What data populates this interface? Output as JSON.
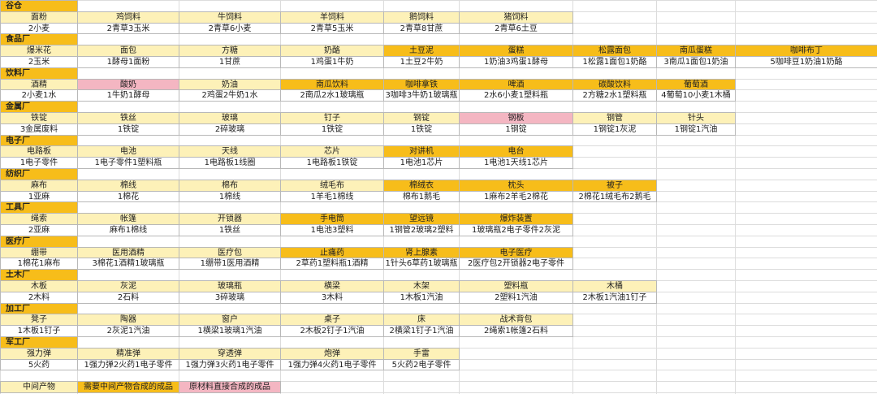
{
  "sections": [
    {
      "title": "谷仓",
      "items": [
        {
          "name": "面粉",
          "color": "#fdf1b8",
          "recipe": "2小麦"
        },
        {
          "name": "鸡饲料",
          "color": "#fdf1b8",
          "recipe": "2青草3玉米"
        },
        {
          "name": "牛饲料",
          "color": "#fdf1b8",
          "recipe": "2青草6小麦"
        },
        {
          "name": "羊饲料",
          "color": "#fdf1b8",
          "recipe": "2青草5玉米"
        },
        {
          "name": "鹅饲料",
          "color": "#fdf1b8",
          "recipe": "2青草8甘蔗"
        },
        {
          "name": "猪饲料",
          "color": "#fdf1b8",
          "recipe": "2青草6土豆"
        }
      ]
    },
    {
      "title": "食品厂",
      "items": [
        {
          "name": "爆米花",
          "color": "#fdf1b8",
          "recipe": "2玉米"
        },
        {
          "name": "面包",
          "color": "#fdf1b8",
          "recipe": "1酵母1面粉"
        },
        {
          "name": "方糖",
          "color": "#fdf1b8",
          "recipe": "1甘蔗"
        },
        {
          "name": "奶酪",
          "color": "#fdf1b8",
          "recipe": "1鸡蛋1牛奶"
        },
        {
          "name": "土豆泥",
          "color": "#f7bd1a",
          "recipe": "1土豆2牛奶"
        },
        {
          "name": "蛋糕",
          "color": "#f7bd1a",
          "recipe": "1奶油3鸡蛋1酵母"
        },
        {
          "name": "松露面包",
          "color": "#f7bd1a",
          "recipe": "1松露1面包1奶酪"
        },
        {
          "name": "南瓜蛋糕",
          "color": "#f7bd1a",
          "recipe": "3南瓜1面包1奶油"
        },
        {
          "name": "咖啡布丁",
          "color": "#f7bd1a",
          "recipe": "5咖啡豆1奶油1奶酪"
        }
      ]
    },
    {
      "title": "饮料厂",
      "items": [
        {
          "name": "酒精",
          "color": "#fdf1b8",
          "recipe": "2小麦1水"
        },
        {
          "name": "酸奶",
          "color": "#f4b6c2",
          "recipe": "1牛奶1酵母"
        },
        {
          "name": "奶油",
          "color": "#fdf1b8",
          "recipe": "2鸡蛋2牛奶1水"
        },
        {
          "name": "南瓜饮料",
          "color": "#f7bd1a",
          "recipe": "2南瓜2水1玻璃瓶"
        },
        {
          "name": "咖啡拿铁",
          "color": "#f7bd1a",
          "recipe": "3咖啡3牛奶1玻璃瓶"
        },
        {
          "name": "啤酒",
          "color": "#f7bd1a",
          "recipe": "2水6小麦1塑料瓶"
        },
        {
          "name": "碳酸饮料",
          "color": "#f7bd1a",
          "recipe": "2方糖2水1塑料瓶"
        },
        {
          "name": "葡萄酒",
          "color": "#f7bd1a",
          "recipe": "4葡萄10小麦1木桶"
        }
      ]
    },
    {
      "title": "金属厂",
      "items": [
        {
          "name": "铁锭",
          "color": "#fdf1b8",
          "recipe": "3金属废料"
        },
        {
          "name": "铁丝",
          "color": "#fdf1b8",
          "recipe": "1铁锭"
        },
        {
          "name": "玻璃",
          "color": "#fdf1b8",
          "recipe": "2碎玻璃"
        },
        {
          "name": "钉子",
          "color": "#fdf1b8",
          "recipe": "1铁锭"
        },
        {
          "name": "钢锭",
          "color": "#fdf1b8",
          "recipe": "1铁锭"
        },
        {
          "name": "钢板",
          "color": "#f4b6c2",
          "recipe": "1钢锭"
        },
        {
          "name": "钢管",
          "color": "#fdf1b8",
          "recipe": "1钢锭1灰泥"
        },
        {
          "name": "针头",
          "color": "#fdf1b8",
          "recipe": "1钢锭1汽油"
        }
      ]
    },
    {
      "title": "电子厂",
      "items": [
        {
          "name": "电路板",
          "color": "#fdf1b8",
          "recipe": "1电子零件"
        },
        {
          "name": "电池",
          "color": "#fdf1b8",
          "recipe": "1电子零件1塑料瓶"
        },
        {
          "name": "天线",
          "color": "#fdf1b8",
          "recipe": "1电路板1线圈"
        },
        {
          "name": "芯片",
          "color": "#fdf1b8",
          "recipe": "1电路板1铁锭"
        },
        {
          "name": "对讲机",
          "color": "#f7bd1a",
          "recipe": "1电池1芯片"
        },
        {
          "name": "电台",
          "color": "#f7bd1a",
          "recipe": "1电池1天线1芯片"
        }
      ]
    },
    {
      "title": "纺织厂",
      "items": [
        {
          "name": "麻布",
          "color": "#fdf1b8",
          "recipe": "1亚麻"
        },
        {
          "name": "棉线",
          "color": "#fdf1b8",
          "recipe": "1棉花"
        },
        {
          "name": "棉布",
          "color": "#fdf1b8",
          "recipe": "1棉线"
        },
        {
          "name": "绒毛布",
          "color": "#fdf1b8",
          "recipe": "1羊毛1棉线"
        },
        {
          "name": "棉绒衣",
          "color": "#f7bd1a",
          "recipe": "棉布1鹅毛"
        },
        {
          "name": "枕头",
          "color": "#f7bd1a",
          "recipe": "1麻布2羊毛2棉花"
        },
        {
          "name": "被子",
          "color": "#f7bd1a",
          "recipe": "2棉花1绒毛布2鹅毛"
        }
      ]
    },
    {
      "title": "工具厂",
      "items": [
        {
          "name": "绳索",
          "color": "#fdf1b8",
          "recipe": "2亚麻"
        },
        {
          "name": "帐篷",
          "color": "#fdf1b8",
          "recipe": "麻布1棉线"
        },
        {
          "name": "开锁器",
          "color": "#fdf1b8",
          "recipe": "1铁丝"
        },
        {
          "name": "手电筒",
          "color": "#f7bd1a",
          "recipe": "1电池3塑料"
        },
        {
          "name": "望远镜",
          "color": "#f7bd1a",
          "recipe": "1钢管2玻璃2塑料"
        },
        {
          "name": "爆炸装置",
          "color": "#f7bd1a",
          "recipe": "1玻璃瓶2电子零件2灰泥"
        }
      ]
    },
    {
      "title": "医疗厂",
      "items": [
        {
          "name": "绷带",
          "color": "#fdf1b8",
          "recipe": "1棉花1麻布"
        },
        {
          "name": "医用酒精",
          "color": "#fdf1b8",
          "recipe": "3棉花1酒精1玻璃瓶"
        },
        {
          "name": "医疗包",
          "color": "#fdf1b8",
          "recipe": "1绷带1医用酒精"
        },
        {
          "name": "止痛药",
          "color": "#f7bd1a",
          "recipe": "2草药1塑料瓶1酒精"
        },
        {
          "name": "肾上腺素",
          "color": "#f7bd1a",
          "recipe": "1针头6草药1玻璃瓶"
        },
        {
          "name": "电子医疗",
          "color": "#f7bd1a",
          "recipe": "2医疗包2开锁器2电子零件"
        }
      ]
    },
    {
      "title": "土木厂",
      "items": [
        {
          "name": "木板",
          "color": "#fdf1b8",
          "recipe": "2木料"
        },
        {
          "name": "灰泥",
          "color": "#fdf1b8",
          "recipe": "2石料"
        },
        {
          "name": "玻璃瓶",
          "color": "#fdf1b8",
          "recipe": "3碎玻璃"
        },
        {
          "name": "横梁",
          "color": "#fdf1b8",
          "recipe": "3木料"
        },
        {
          "name": "木架",
          "color": "#fdf1b8",
          "recipe": "1木板1汽油"
        },
        {
          "name": "塑料瓶",
          "color": "#fdf1b8",
          "recipe": "2塑料1汽油"
        },
        {
          "name": "木桶",
          "color": "#fdf1b8",
          "recipe": "2木板1汽油1钉子"
        }
      ]
    },
    {
      "title": "加工厂",
      "items": [
        {
          "name": "凳子",
          "color": "#fdf1b8",
          "recipe": "1木板1钉子"
        },
        {
          "name": "陶器",
          "color": "#fdf1b8",
          "recipe": "2灰泥1汽油"
        },
        {
          "name": "窗户",
          "color": "#fdf1b8",
          "recipe": "1横梁1玻璃1汽油"
        },
        {
          "name": "桌子",
          "color": "#fdf1b8",
          "recipe": "2木板2钉子1汽油"
        },
        {
          "name": "床",
          "color": "#fdf1b8",
          "recipe": "2横梁1钉子1汽油"
        },
        {
          "name": "战术背包",
          "color": "#fdf1b8",
          "recipe": "2绳索1帐篷2石料"
        }
      ]
    },
    {
      "title": "军工厂",
      "items": [
        {
          "name": "强力弹",
          "color": "#fdf1b8",
          "recipe": "5火药"
        },
        {
          "name": "精准弹",
          "color": "#fdf1b8",
          "recipe": "1强力弹2火药1电子零件"
        },
        {
          "name": "穿透弹",
          "color": "#fdf1b8",
          "recipe": "1强力弹3火药1电子零件"
        },
        {
          "name": "炮弹",
          "color": "#fdf1b8",
          "recipe": "1强力弹4火药1电子零件"
        },
        {
          "name": "手雷",
          "color": "#fdf1b8",
          "recipe": "5火药2电子零件"
        }
      ]
    }
  ],
  "legend": [
    {
      "label": "中间产物",
      "color": "#fdf1b8"
    },
    {
      "label": "需要中间产物合成的成品",
      "color": "#f7bd1a"
    },
    {
      "label": "原材料直接合成的成品",
      "color": "#f4b6c2"
    }
  ],
  "header_color": "#f7bd1a"
}
